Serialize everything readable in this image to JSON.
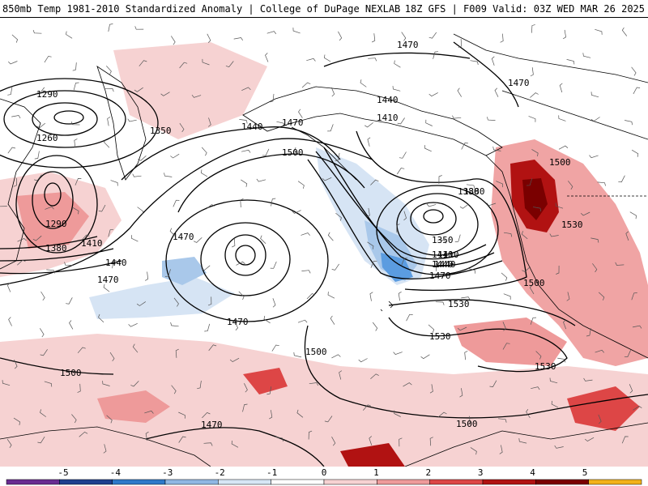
{
  "header": {
    "title_left": "850mb Temp 1981-2010 Standardized Anomaly | College of DuPage NEXLAB",
    "title_right": "18Z GFS | F009 Valid: 03Z WED MAR 26 2025"
  },
  "colors": {
    "land_line": "#000000",
    "anomaly_pos_1": "#f6d2d2",
    "anomaly_pos_2": "#ee9a9a",
    "anomaly_pos_3": "#dd4646",
    "anomaly_pos_4": "#b11212",
    "anomaly_pos_5": "#7a0000",
    "anomaly_neg_1": "#d6e4f4",
    "anomaly_neg_2": "#a9c8ea",
    "anomaly_neg_3": "#5b9ce0"
  },
  "height_labels": [
    {
      "text": "1290"
    },
    {
      "text": "1260"
    },
    {
      "text": "1350"
    },
    {
      "text": "1440"
    },
    {
      "text": "1470"
    },
    {
      "text": "1500"
    },
    {
      "text": "1470"
    },
    {
      "text": "1440"
    },
    {
      "text": "1410"
    },
    {
      "text": "1380"
    },
    {
      "text": "1470"
    },
    {
      "text": "1290"
    },
    {
      "text": "1380"
    },
    {
      "text": "1410"
    },
    {
      "text": "1440"
    },
    {
      "text": "1470"
    },
    {
      "text": "1470"
    },
    {
      "text": "1470"
    },
    {
      "text": "1440"
    },
    {
      "text": "1410"
    },
    {
      "text": "1380"
    },
    {
      "text": "1350"
    },
    {
      "text": "1410"
    },
    {
      "text": "1440"
    },
    {
      "text": "1470"
    },
    {
      "text": "1500"
    },
    {
      "text": "1530"
    },
    {
      "text": "1500"
    },
    {
      "text": "1530"
    },
    {
      "text": "1530"
    },
    {
      "text": "1530"
    },
    {
      "text": "1500"
    },
    {
      "text": "1500"
    },
    {
      "text": "1470"
    },
    {
      "text": "1500"
    },
    {
      "text": "1470"
    }
  ],
  "colorbar": {
    "ticks": [
      "-5",
      "-4",
      "-3",
      "-2",
      "-1",
      "0",
      "1",
      "2",
      "3",
      "4",
      "5"
    ],
    "colors": [
      "#6a2c91",
      "#1f3f8f",
      "#2e79c9",
      "#8fb7e3",
      "#d6e6f5",
      "#ffffff",
      "#f6d2d2",
      "#ee9a9a",
      "#dd4646",
      "#b11212",
      "#7a0000",
      "#f2b21a"
    ]
  }
}
